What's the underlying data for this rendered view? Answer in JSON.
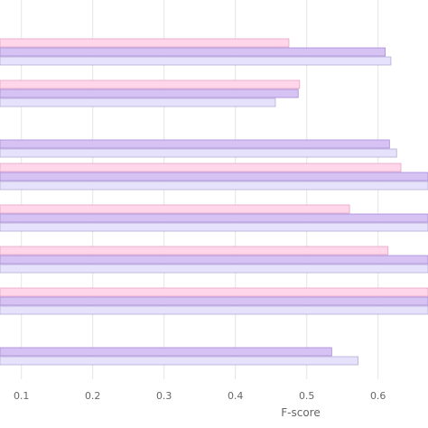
{
  "chart_data": {
    "type": "bar",
    "orientation": "horizontal",
    "title": "",
    "xlabel": "F-score",
    "ylabel": "",
    "xlim": [
      0.07,
      0.67
    ],
    "xticks": [
      0.1,
      0.2,
      0.3,
      0.4,
      0.5,
      0.6
    ],
    "xtick_labels": [
      "0.1",
      "0.2",
      "0.3",
      "0.4",
      "0.5",
      "0.6"
    ],
    "grid": true,
    "series": [
      {
        "color": "#ffd6ea",
        "stroke": "#e6a3c4",
        "values": [
          0.475,
          0.49,
          null,
          0.632,
          0.56,
          0.614,
          0.67,
          null
        ]
      },
      {
        "color": "#d6c3f4",
        "stroke": "#a98bd9",
        "values": [
          0.61,
          0.488,
          0.616,
          0.67,
          0.67,
          0.67,
          0.67,
          0.535
        ]
      },
      {
        "color": "#e6e2fb",
        "stroke": "#b3acd9",
        "values": [
          0.618,
          0.456,
          0.626,
          0.67,
          0.67,
          0.67,
          0.67,
          0.572
        ]
      }
    ]
  }
}
